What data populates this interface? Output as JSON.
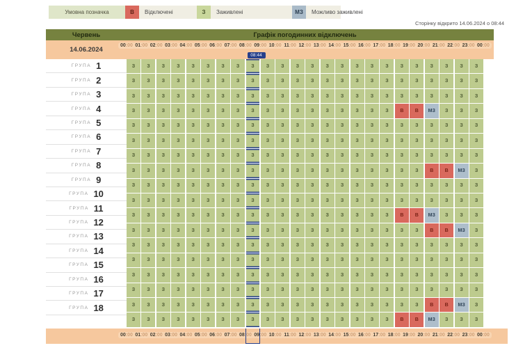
{
  "legend": {
    "title": "Умовна позначка",
    "items": [
      {
        "code": "В",
        "label": "Відключені",
        "color": "#d9695d"
      },
      {
        "code": "З",
        "label": "Заживлені",
        "color": "#c9d79c"
      },
      {
        "code": "МЗ",
        "label": "Можливо заживлені",
        "color": "#a9bac8"
      }
    ]
  },
  "page_opened_note": "Сторінку відкрито 14.06.2024 о 08:44",
  "colors": {
    "accent_now": "#27408b",
    "header_olive": "#76823f",
    "header_peach": "#f6c89e",
    "status_on": "#bdcb8e",
    "status_off": "#d9695d",
    "status_maybe": "#aebecb"
  },
  "schedule": {
    "month": "Червень",
    "title": "Графік погодинних відключень",
    "date": "14.06.2024",
    "current_time": "08:44",
    "row_label": "ГРУПА",
    "time_labels": [
      "00:00",
      "01:00",
      "02:00",
      "03:00",
      "04:00",
      "05:00",
      "06:00",
      "07:00",
      "08:00",
      "09:00",
      "10:00",
      "11:00",
      "12:00",
      "13:00",
      "14:00",
      "15:00",
      "16:00",
      "17:00",
      "18:00",
      "19:00",
      "20:00",
      "21:00",
      "22:00",
      "23:00",
      "00:00"
    ],
    "groups": [
      {
        "number": "1",
        "cells": [
          "З",
          "З",
          "З",
          "З",
          "З",
          "З",
          "З",
          "З",
          "З",
          "З",
          "З",
          "З",
          "З",
          "З",
          "З",
          "З",
          "З",
          "З",
          "З",
          "З",
          "З",
          "З",
          "З",
          "З"
        ]
      },
      {
        "number": "2",
        "cells": [
          "З",
          "З",
          "З",
          "З",
          "З",
          "З",
          "З",
          "З",
          "З",
          "З",
          "З",
          "З",
          "З",
          "З",
          "З",
          "З",
          "З",
          "З",
          "З",
          "З",
          "З",
          "З",
          "З",
          "З"
        ]
      },
      {
        "number": "3",
        "cells": [
          "З",
          "З",
          "З",
          "З",
          "З",
          "З",
          "З",
          "З",
          "З",
          "З",
          "З",
          "З",
          "З",
          "З",
          "З",
          "З",
          "З",
          "З",
          "З",
          "З",
          "З",
          "З",
          "З",
          "З"
        ]
      },
      {
        "number": "4",
        "cells": [
          "З",
          "З",
          "З",
          "З",
          "З",
          "З",
          "З",
          "З",
          "З",
          "З",
          "З",
          "З",
          "З",
          "З",
          "З",
          "З",
          "З",
          "З",
          "В",
          "В",
          "МЗ",
          "З",
          "З",
          "З"
        ]
      },
      {
        "number": "5",
        "cells": [
          "З",
          "З",
          "З",
          "З",
          "З",
          "З",
          "З",
          "З",
          "З",
          "З",
          "З",
          "З",
          "З",
          "З",
          "З",
          "З",
          "З",
          "З",
          "З",
          "З",
          "З",
          "З",
          "З",
          "З"
        ]
      },
      {
        "number": "6",
        "cells": [
          "З",
          "З",
          "З",
          "З",
          "З",
          "З",
          "З",
          "З",
          "З",
          "З",
          "З",
          "З",
          "З",
          "З",
          "З",
          "З",
          "З",
          "З",
          "З",
          "З",
          "З",
          "З",
          "З",
          "З"
        ]
      },
      {
        "number": "7",
        "cells": [
          "З",
          "З",
          "З",
          "З",
          "З",
          "З",
          "З",
          "З",
          "З",
          "З",
          "З",
          "З",
          "З",
          "З",
          "З",
          "З",
          "З",
          "З",
          "З",
          "З",
          "З",
          "З",
          "З",
          "З"
        ]
      },
      {
        "number": "8",
        "cells": [
          "З",
          "З",
          "З",
          "З",
          "З",
          "З",
          "З",
          "З",
          "З",
          "З",
          "З",
          "З",
          "З",
          "З",
          "З",
          "З",
          "З",
          "З",
          "З",
          "З",
          "В",
          "В",
          "МЗ",
          "З"
        ]
      },
      {
        "number": "9",
        "cells": [
          "З",
          "З",
          "З",
          "З",
          "З",
          "З",
          "З",
          "З",
          "З",
          "З",
          "З",
          "З",
          "З",
          "З",
          "З",
          "З",
          "З",
          "З",
          "З",
          "З",
          "З",
          "З",
          "З",
          "З"
        ]
      },
      {
        "number": "10",
        "cells": [
          "З",
          "З",
          "З",
          "З",
          "З",
          "З",
          "З",
          "З",
          "З",
          "З",
          "З",
          "З",
          "З",
          "З",
          "З",
          "З",
          "З",
          "З",
          "З",
          "З",
          "З",
          "З",
          "З",
          "З"
        ]
      },
      {
        "number": "11",
        "cells": [
          "З",
          "З",
          "З",
          "З",
          "З",
          "З",
          "З",
          "З",
          "З",
          "З",
          "З",
          "З",
          "З",
          "З",
          "З",
          "З",
          "З",
          "З",
          "В",
          "В",
          "МЗ",
          "З",
          "З",
          "З"
        ]
      },
      {
        "number": "12",
        "cells": [
          "З",
          "З",
          "З",
          "З",
          "З",
          "З",
          "З",
          "З",
          "З",
          "З",
          "З",
          "З",
          "З",
          "З",
          "З",
          "З",
          "З",
          "З",
          "З",
          "З",
          "В",
          "В",
          "МЗ",
          "З"
        ]
      },
      {
        "number": "13",
        "cells": [
          "З",
          "З",
          "З",
          "З",
          "З",
          "З",
          "З",
          "З",
          "З",
          "З",
          "З",
          "З",
          "З",
          "З",
          "З",
          "З",
          "З",
          "З",
          "З",
          "З",
          "З",
          "З",
          "З",
          "З"
        ]
      },
      {
        "number": "14",
        "cells": [
          "З",
          "З",
          "З",
          "З",
          "З",
          "З",
          "З",
          "З",
          "З",
          "З",
          "З",
          "З",
          "З",
          "З",
          "З",
          "З",
          "З",
          "З",
          "З",
          "З",
          "З",
          "З",
          "З",
          "З"
        ]
      },
      {
        "number": "15",
        "cells": [
          "З",
          "З",
          "З",
          "З",
          "З",
          "З",
          "З",
          "З",
          "З",
          "З",
          "З",
          "З",
          "З",
          "З",
          "З",
          "З",
          "З",
          "З",
          "З",
          "З",
          "З",
          "З",
          "З",
          "З"
        ]
      },
      {
        "number": "16",
        "cells": [
          "З",
          "З",
          "З",
          "З",
          "З",
          "З",
          "З",
          "З",
          "З",
          "З",
          "З",
          "З",
          "З",
          "З",
          "З",
          "З",
          "З",
          "З",
          "З",
          "З",
          "З",
          "З",
          "З",
          "З"
        ]
      },
      {
        "number": "17",
        "cells": [
          "З",
          "З",
          "З",
          "З",
          "З",
          "З",
          "З",
          "З",
          "З",
          "З",
          "З",
          "З",
          "З",
          "З",
          "З",
          "З",
          "З",
          "З",
          "З",
          "З",
          "В",
          "В",
          "МЗ",
          "З"
        ]
      },
      {
        "number": "18",
        "cells": [
          "З",
          "З",
          "З",
          "З",
          "З",
          "З",
          "З",
          "З",
          "З",
          "З",
          "З",
          "З",
          "З",
          "З",
          "З",
          "З",
          "З",
          "З",
          "В",
          "В",
          "МЗ",
          "З",
          "З",
          "З"
        ]
      }
    ]
  }
}
